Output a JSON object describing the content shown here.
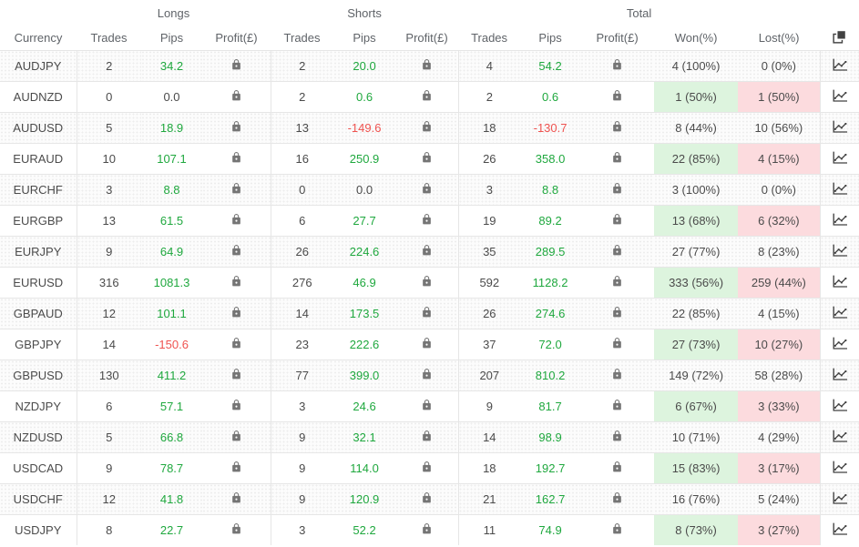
{
  "colors": {
    "green_text": "#1fa83e",
    "red_text": "#ef5350",
    "won_cell_bg": "#ddf4de",
    "lost_cell_bg": "#fcdbde",
    "border": "#e6e6e6",
    "lock_icon": "#757575",
    "dark_icon": "#424242"
  },
  "header": {
    "currency_label": "Currency",
    "groups": [
      {
        "label": "Longs",
        "columns": [
          "Trades",
          "Pips",
          "Profit(£)"
        ]
      },
      {
        "label": "Shorts",
        "columns": [
          "Trades",
          "Pips",
          "Profit(£)"
        ]
      },
      {
        "label": "Total",
        "columns": [
          "Trades",
          "Pips",
          "Profit(£)",
          "Won(%)",
          "Lost(%)"
        ]
      }
    ],
    "copy_icon": "copy-icon"
  },
  "rows": [
    {
      "currency": "AUDJPY",
      "longs": {
        "trades": "2",
        "pips": "34.2"
      },
      "shorts": {
        "trades": "2",
        "pips": "20.0"
      },
      "total": {
        "trades": "4",
        "pips": "54.2"
      },
      "won": "4 (100%)",
      "lost": "0 (0%)"
    },
    {
      "currency": "AUDNZD",
      "longs": {
        "trades": "0",
        "pips": "0.0"
      },
      "shorts": {
        "trades": "2",
        "pips": "0.6"
      },
      "total": {
        "trades": "2",
        "pips": "0.6"
      },
      "won": "1 (50%)",
      "lost": "1 (50%)"
    },
    {
      "currency": "AUDUSD",
      "longs": {
        "trades": "5",
        "pips": "18.9"
      },
      "shorts": {
        "trades": "13",
        "pips": "-149.6"
      },
      "total": {
        "trades": "18",
        "pips": "-130.7"
      },
      "won": "8 (44%)",
      "lost": "10 (56%)"
    },
    {
      "currency": "EURAUD",
      "longs": {
        "trades": "10",
        "pips": "107.1"
      },
      "shorts": {
        "trades": "16",
        "pips": "250.9"
      },
      "total": {
        "trades": "26",
        "pips": "358.0"
      },
      "won": "22 (85%)",
      "lost": "4 (15%)"
    },
    {
      "currency": "EURCHF",
      "longs": {
        "trades": "3",
        "pips": "8.8"
      },
      "shorts": {
        "trades": "0",
        "pips": "0.0"
      },
      "total": {
        "trades": "3",
        "pips": "8.8"
      },
      "won": "3 (100%)",
      "lost": "0 (0%)"
    },
    {
      "currency": "EURGBP",
      "longs": {
        "trades": "13",
        "pips": "61.5"
      },
      "shorts": {
        "trades": "6",
        "pips": "27.7"
      },
      "total": {
        "trades": "19",
        "pips": "89.2"
      },
      "won": "13 (68%)",
      "lost": "6 (32%)"
    },
    {
      "currency": "EURJPY",
      "longs": {
        "trades": "9",
        "pips": "64.9"
      },
      "shorts": {
        "trades": "26",
        "pips": "224.6"
      },
      "total": {
        "trades": "35",
        "pips": "289.5"
      },
      "won": "27 (77%)",
      "lost": "8 (23%)"
    },
    {
      "currency": "EURUSD",
      "longs": {
        "trades": "316",
        "pips": "1081.3"
      },
      "shorts": {
        "trades": "276",
        "pips": "46.9"
      },
      "total": {
        "trades": "592",
        "pips": "1128.2"
      },
      "won": "333 (56%)",
      "lost": "259 (44%)"
    },
    {
      "currency": "GBPAUD",
      "longs": {
        "trades": "12",
        "pips": "101.1"
      },
      "shorts": {
        "trades": "14",
        "pips": "173.5"
      },
      "total": {
        "trades": "26",
        "pips": "274.6"
      },
      "won": "22 (85%)",
      "lost": "4 (15%)"
    },
    {
      "currency": "GBPJPY",
      "longs": {
        "trades": "14",
        "pips": "-150.6"
      },
      "shorts": {
        "trades": "23",
        "pips": "222.6"
      },
      "total": {
        "trades": "37",
        "pips": "72.0"
      },
      "won": "27 (73%)",
      "lost": "10 (27%)"
    },
    {
      "currency": "GBPUSD",
      "longs": {
        "trades": "130",
        "pips": "411.2"
      },
      "shorts": {
        "trades": "77",
        "pips": "399.0"
      },
      "total": {
        "trades": "207",
        "pips": "810.2"
      },
      "won": "149 (72%)",
      "lost": "58 (28%)"
    },
    {
      "currency": "NZDJPY",
      "longs": {
        "trades": "6",
        "pips": "57.1"
      },
      "shorts": {
        "trades": "3",
        "pips": "24.6"
      },
      "total": {
        "trades": "9",
        "pips": "81.7"
      },
      "won": "6 (67%)",
      "lost": "3 (33%)"
    },
    {
      "currency": "NZDUSD",
      "longs": {
        "trades": "5",
        "pips": "66.8"
      },
      "shorts": {
        "trades": "9",
        "pips": "32.1"
      },
      "total": {
        "trades": "14",
        "pips": "98.9"
      },
      "won": "10 (71%)",
      "lost": "4 (29%)"
    },
    {
      "currency": "USDCAD",
      "longs": {
        "trades": "9",
        "pips": "78.7"
      },
      "shorts": {
        "trades": "9",
        "pips": "114.0"
      },
      "total": {
        "trades": "18",
        "pips": "192.7"
      },
      "won": "15 (83%)",
      "lost": "3 (17%)"
    },
    {
      "currency": "USDCHF",
      "longs": {
        "trades": "12",
        "pips": "41.8"
      },
      "shorts": {
        "trades": "9",
        "pips": "120.9"
      },
      "total": {
        "trades": "21",
        "pips": "162.7"
      },
      "won": "16 (76%)",
      "lost": "5 (24%)"
    },
    {
      "currency": "USDJPY",
      "longs": {
        "trades": "8",
        "pips": "22.7"
      },
      "shorts": {
        "trades": "3",
        "pips": "52.2"
      },
      "total": {
        "trades": "11",
        "pips": "74.9"
      },
      "won": "8 (73%)",
      "lost": "3 (27%)"
    }
  ],
  "icons": {
    "lock": "lock-icon",
    "chart": "chart-icon",
    "copy": "copy-icon"
  }
}
